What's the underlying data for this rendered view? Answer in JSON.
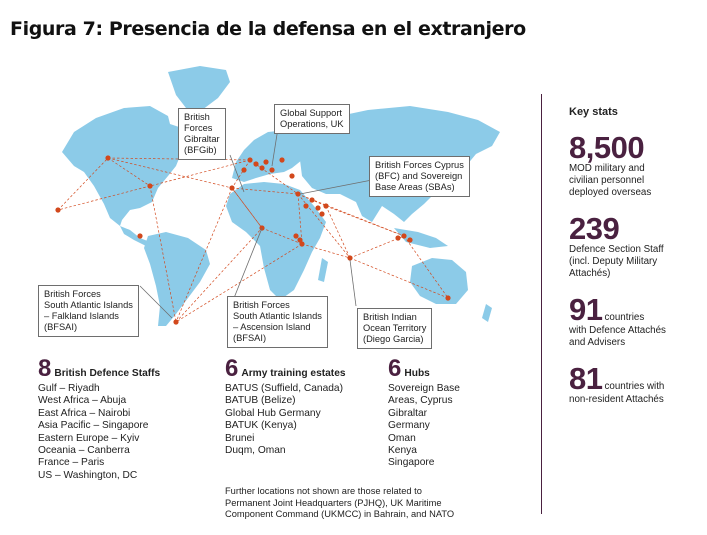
{
  "title": "Figura 7: Presencia de la defensa en el extranjero",
  "colors": {
    "accent": "#4a2140",
    "land": "#8ccbe8",
    "dot": "#d2481c"
  },
  "callouts": {
    "gibraltar": [
      "British",
      "Forces",
      "Gibraltar",
      "(BFGib)"
    ],
    "global_support": [
      "Global Support",
      "Operations, UK"
    ],
    "cyprus": [
      "British Forces Cyprus",
      "(BFC) and Sovereign",
      "Base Areas (SBAs)"
    ],
    "falklands": [
      "British Forces",
      "South Atlantic Islands",
      "– Falkland Islands",
      "(BFSAI)"
    ],
    "ascension": [
      "British Forces",
      "South Atlantic Islands",
      "– Ascension Island",
      "(BFSAI)"
    ],
    "indian_ocean": [
      "British Indian",
      "Ocean Territory",
      "(Diego Garcia)"
    ]
  },
  "staffs": {
    "count": "8",
    "label": "British Defence Staffs",
    "items": [
      "Gulf – Riyadh",
      "West Africa – Abuja",
      "East Africa – Nairobi",
      "Asia Pacific – Singapore",
      "Eastern Europe – Kyiv",
      "Oceania – Canberra",
      "France – Paris",
      "US – Washington, DC"
    ]
  },
  "estates": {
    "count": "6",
    "label": "Army training estates",
    "items": [
      "BATUS (Suffield, Canada)",
      "BATUB (Belize)",
      "Global Hub Germany",
      "BATUK (Kenya)",
      "Brunei",
      "Duqm, Oman"
    ]
  },
  "hubs": {
    "count": "6",
    "label": "Hubs",
    "items": [
      "Sovereign Base",
      "Areas, Cyprus",
      "Gibraltar",
      "Germany",
      "Oman",
      "Kenya",
      "Singapore"
    ]
  },
  "footnote": [
    "Further locations not shown are those related to",
    "Permanent Joint Headquarters (PJHQ), UK Maritime",
    "Component Command (UKMCC) in Bahrain, and NATO"
  ],
  "key_stats": {
    "heading": "Key stats",
    "mod": {
      "number": "8,500",
      "desc": [
        "MOD military and",
        "civilian personnel",
        "deployed overseas"
      ]
    },
    "section": {
      "number": "239",
      "desc": [
        "Defence Section Staff",
        "(incl. Deputy Military",
        "Attachés)"
      ]
    },
    "attaches": {
      "number": "91",
      "desc_inline": "countries",
      "desc": [
        "with Defence Attachés",
        "and Advisers"
      ]
    },
    "nonres": {
      "number": "81",
      "desc_inline": "countries with",
      "desc": [
        "non-resident Attachés"
      ]
    }
  }
}
